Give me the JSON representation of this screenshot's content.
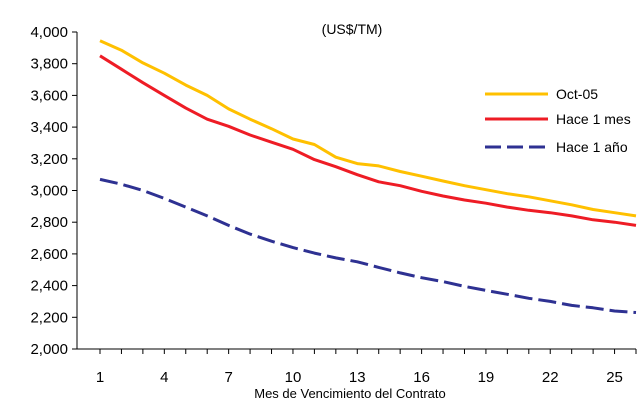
{
  "chart_data": {
    "type": "line",
    "title": "",
    "unit_label": "(US$/TM)",
    "xlabel": "Mes de Vencimiento del Contrato",
    "ylabel": "",
    "x": [
      1,
      2,
      3,
      4,
      5,
      6,
      7,
      8,
      9,
      10,
      11,
      12,
      13,
      14,
      15,
      16,
      17,
      18,
      19,
      20,
      21,
      22,
      23,
      24,
      25,
      26
    ],
    "xlim": [
      1,
      26
    ],
    "x_ticks": [
      1,
      4,
      7,
      10,
      13,
      16,
      19,
      22,
      25
    ],
    "x_tick_labels": [
      "1",
      "4",
      "7",
      "10",
      "13",
      "16",
      "19",
      "22",
      "25"
    ],
    "ylim": [
      2000,
      4000
    ],
    "y_ticks": [
      2000,
      2200,
      2400,
      2600,
      2800,
      3000,
      3200,
      3400,
      3600,
      3800,
      4000
    ],
    "y_tick_labels": [
      "2,000",
      "2,200",
      "2,400",
      "2,600",
      "2,800",
      "3,000",
      "3,200",
      "3,400",
      "3,600",
      "3,800",
      "4,000"
    ],
    "grid": false,
    "legend_position": "right",
    "series": [
      {
        "name": "Oct-05",
        "color": "#ffc000",
        "dash": "solid",
        "values": [
          3945,
          3885,
          3805,
          3740,
          3665,
          3600,
          3515,
          3450,
          3390,
          3325,
          3290,
          3210,
          3170,
          3155,
          3120,
          3090,
          3060,
          3030,
          3005,
          2980,
          2960,
          2935,
          2910,
          2880,
          2860,
          2840
        ]
      },
      {
        "name": "Hace 1 mes",
        "color": "#ee1c25",
        "dash": "solid",
        "values": [
          3850,
          3765,
          3680,
          3600,
          3520,
          3450,
          3405,
          3350,
          3305,
          3260,
          3195,
          3150,
          3100,
          3055,
          3030,
          2995,
          2965,
          2940,
          2920,
          2895,
          2875,
          2860,
          2840,
          2815,
          2800,
          2780
        ]
      },
      {
        "name": "Hace 1 año",
        "color": "#2e3192",
        "dash": "dashed",
        "values": [
          3070,
          3040,
          3000,
          2950,
          2895,
          2840,
          2780,
          2725,
          2680,
          2640,
          2605,
          2575,
          2550,
          2515,
          2480,
          2450,
          2425,
          2395,
          2370,
          2345,
          2320,
          2300,
          2275,
          2260,
          2240,
          2230
        ]
      }
    ]
  }
}
